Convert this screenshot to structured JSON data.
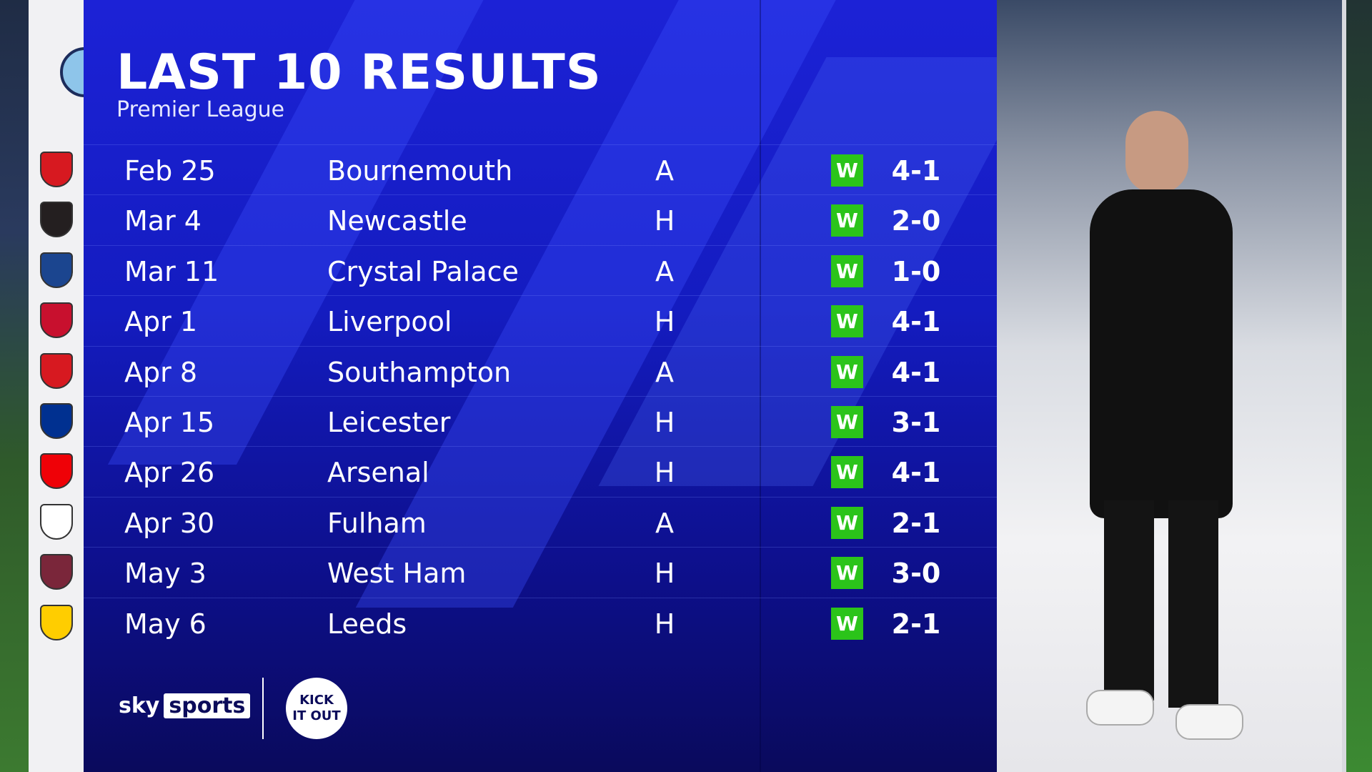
{
  "header": {
    "title": "LAST 10 RESULTS",
    "subtitle": "Premier League",
    "team_badge": "manchester-city-badge"
  },
  "colors": {
    "panel": "#1418c8",
    "win": "#2bc41a"
  },
  "results": [
    {
      "date": "Feb 25",
      "opponent": "Bournemouth",
      "venue": "A",
      "result": "W",
      "score": "4-1",
      "badge_color": "#d71920"
    },
    {
      "date": "Mar 4",
      "opponent": "Newcastle",
      "venue": "H",
      "result": "W",
      "score": "2-0",
      "badge_color": "#241f20"
    },
    {
      "date": "Mar 11",
      "opponent": "Crystal Palace",
      "venue": "A",
      "result": "W",
      "score": "1-0",
      "badge_color": "#1b458f"
    },
    {
      "date": "Apr 1",
      "opponent": "Liverpool",
      "venue": "H",
      "result": "W",
      "score": "4-1",
      "badge_color": "#c8102e"
    },
    {
      "date": "Apr 8",
      "opponent": "Southampton",
      "venue": "A",
      "result": "W",
      "score": "4-1",
      "badge_color": "#d71920"
    },
    {
      "date": "Apr 15",
      "opponent": "Leicester",
      "venue": "H",
      "result": "W",
      "score": "3-1",
      "badge_color": "#003090"
    },
    {
      "date": "Apr 26",
      "opponent": "Arsenal",
      "venue": "H",
      "result": "W",
      "score": "4-1",
      "badge_color": "#ef0107"
    },
    {
      "date": "Apr 30",
      "opponent": "Fulham",
      "venue": "A",
      "result": "W",
      "score": "2-1",
      "badge_color": "#ffffff"
    },
    {
      "date": "May 3",
      "opponent": "West Ham",
      "venue": "H",
      "result": "W",
      "score": "3-0",
      "badge_color": "#7a263a"
    },
    {
      "date": "May 6",
      "opponent": "Leeds",
      "venue": "H",
      "result": "W",
      "score": "2-1",
      "badge_color": "#ffcd00"
    }
  ],
  "footer": {
    "sky": "sky",
    "sports": "sports",
    "kick_it_out": "KICK IT OUT"
  }
}
